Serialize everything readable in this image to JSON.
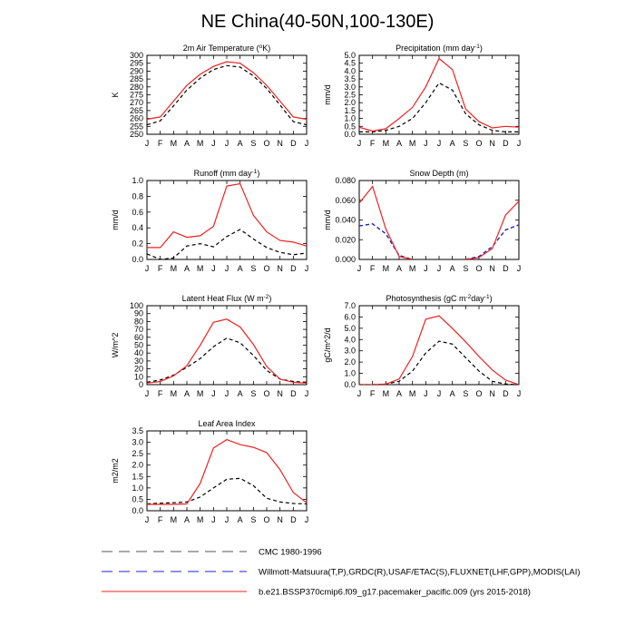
{
  "title": "NE China(40-50N,100-130E)",
  "colors": {
    "cmc": "#000000",
    "obs": "#2222cc",
    "model": "#ee2222"
  },
  "months": [
    "J",
    "F",
    "M",
    "A",
    "M",
    "J",
    "J",
    "A",
    "S",
    "O",
    "N",
    "D",
    "J"
  ],
  "legend": [
    {
      "label": "CMC 1980-1996",
      "color": "#555555",
      "dash": "dashed"
    },
    {
      "label": "Willmott-Matsuura(T,P),GRDC(R),USAF/ETAC(S),FLUXNET(LHF,GPP),MODIS(LAI)",
      "color": "#2222cc",
      "dash": "dashed"
    },
    {
      "label": "b.e21.BSSP370cmip6.f09_g17.pacemaker_pacific.009 (yrs 2015-2018)",
      "color": "#ee2222",
      "dash": "solid"
    }
  ],
  "chart_data": [
    {
      "id": "temp",
      "type": "line",
      "title": "2m Air Temperature (",
      "title_sup": "o",
      "title_tail": "K)",
      "ylabel": "K",
      "ylim": [
        250,
        300
      ],
      "yticks": [
        250,
        255,
        260,
        265,
        270,
        275,
        280,
        285,
        290,
        295,
        300
      ],
      "categories": [
        "J",
        "F",
        "M",
        "A",
        "M",
        "J",
        "J",
        "A",
        "S",
        "O",
        "N",
        "D",
        "J"
      ],
      "series": [
        {
          "name": "model",
          "values": [
            259.5,
            261,
            271,
            281,
            288,
            293,
            296,
            295,
            289,
            281,
            271,
            261,
            259.5
          ]
        },
        {
          "name": "cmc",
          "values": [
            256,
            258.5,
            268,
            278,
            285.5,
            291,
            293.5,
            292.5,
            287,
            279,
            268.5,
            258,
            256
          ]
        }
      ]
    },
    {
      "id": "precip",
      "type": "line",
      "title": "Precipitation (mm day",
      "title_sup": "-1",
      "title_tail": ")",
      "ylabel": "mm/d",
      "ylim": [
        0,
        5
      ],
      "yticks": [
        0.0,
        0.5,
        1.0,
        1.5,
        2.0,
        2.5,
        3.0,
        3.5,
        4.0,
        4.5,
        5.0
      ],
      "categories": [
        "J",
        "F",
        "M",
        "A",
        "M",
        "J",
        "J",
        "A",
        "S",
        "O",
        "N",
        "D",
        "J"
      ],
      "series": [
        {
          "name": "model",
          "values": [
            0.45,
            0.2,
            0.35,
            1.0,
            1.7,
            3.0,
            4.8,
            4.1,
            1.6,
            0.8,
            0.4,
            0.5,
            0.45
          ]
        },
        {
          "name": "cmc",
          "values": [
            0.15,
            0.15,
            0.25,
            0.5,
            1.0,
            2.0,
            3.25,
            2.8,
            1.3,
            0.6,
            0.25,
            0.15,
            0.15
          ]
        }
      ]
    },
    {
      "id": "runoff",
      "type": "line",
      "title": "Runoff (mm day",
      "title_sup": "-1",
      "title_tail": ")",
      "ylabel": "mm/d",
      "ylim": [
        0,
        1
      ],
      "yticks": [
        0.0,
        0.2,
        0.4,
        0.6,
        0.8,
        1.0
      ],
      "categories": [
        "J",
        "F",
        "M",
        "A",
        "M",
        "J",
        "J",
        "A",
        "S",
        "O",
        "N",
        "D",
        "J"
      ],
      "series": [
        {
          "name": "model",
          "values": [
            0.15,
            0.15,
            0.35,
            0.28,
            0.3,
            0.42,
            0.93,
            0.96,
            0.56,
            0.35,
            0.24,
            0.22,
            0.17
          ]
        },
        {
          "name": "cmc",
          "values": [
            0.07,
            0.0,
            0.02,
            0.17,
            0.2,
            0.16,
            0.29,
            0.38,
            0.26,
            0.15,
            0.09,
            0.06,
            0.08
          ]
        }
      ]
    },
    {
      "id": "snow",
      "type": "line",
      "title": "Snow Depth (m)",
      "title_sup": "",
      "title_tail": "",
      "ylabel": "mm/d",
      "ylim": [
        0,
        0.08
      ],
      "yticks": [
        0.0,
        0.02,
        0.04,
        0.06,
        0.08
      ],
      "categories": [
        "J",
        "F",
        "M",
        "A",
        "M",
        "J",
        "J",
        "A",
        "S",
        "O",
        "N",
        "D",
        "J"
      ],
      "series": [
        {
          "name": "model",
          "values": [
            0.057,
            0.074,
            0.031,
            0.003,
            0.0,
            null,
            null,
            null,
            0.0,
            0.002,
            0.011,
            0.045,
            0.059
          ]
        },
        {
          "name": "obs",
          "values": [
            0.034,
            0.036,
            0.026,
            0.004,
            0.0,
            null,
            null,
            null,
            0.0,
            0.003,
            0.013,
            0.03,
            0.035
          ]
        },
        {
          "name": "cmc",
          "values": [
            0.034,
            0.036,
            0.026,
            0.004,
            0.0,
            null,
            null,
            null,
            0.0,
            0.003,
            0.013,
            0.03,
            0.035
          ]
        }
      ]
    },
    {
      "id": "lhf",
      "type": "line",
      "title": "Latent Heat Flux (W m",
      "title_sup": "-2",
      "title_tail": ")",
      "ylabel": "W/m^2",
      "ylim": [
        0,
        100
      ],
      "yticks": [
        0,
        10,
        20,
        30,
        40,
        50,
        60,
        70,
        80,
        90,
        100
      ],
      "categories": [
        "J",
        "F",
        "M",
        "A",
        "M",
        "J",
        "J",
        "A",
        "S",
        "O",
        "N",
        "D",
        "J"
      ],
      "series": [
        {
          "name": "model",
          "values": [
            2,
            4,
            11,
            24,
            50,
            79,
            83,
            73,
            51,
            23,
            7,
            3,
            2
          ]
        },
        {
          "name": "cmc",
          "values": [
            3,
            6,
            12,
            22,
            33,
            48,
            59,
            53,
            37,
            18,
            7,
            4,
            3
          ]
        }
      ]
    },
    {
      "id": "gpp",
      "type": "line",
      "title": "Photosynthesis (gC m",
      "title_sup": "-2",
      "title_tail": "day",
      "title_sup2": "-1",
      "title_tail2": ")",
      "ylabel": "gC/m^2/d",
      "ylim": [
        0,
        7
      ],
      "yticks": [
        0.0,
        1.0,
        2.0,
        3.0,
        4.0,
        5.0,
        6.0,
        7.0
      ],
      "categories": [
        "J",
        "F",
        "M",
        "A",
        "M",
        "J",
        "J",
        "A",
        "S",
        "O",
        "N",
        "D",
        "J"
      ],
      "series": [
        {
          "name": "model",
          "values": [
            0.0,
            0.0,
            0.05,
            0.5,
            2.5,
            5.8,
            6.1,
            5.0,
            3.8,
            2.5,
            1.3,
            0.4,
            0.0
          ]
        },
        {
          "name": "cmc",
          "values": [
            0.0,
            0.0,
            0.05,
            0.3,
            1.2,
            2.8,
            3.85,
            3.6,
            2.4,
            1.2,
            0.3,
            0.05,
            0.0
          ]
        }
      ]
    },
    {
      "id": "lai",
      "type": "line",
      "title": "Leaf Area Index",
      "title_sup": "",
      "title_tail": "",
      "ylabel": "m2/m2",
      "ylim": [
        0,
        3.5
      ],
      "yticks": [
        0.0,
        0.5,
        1.0,
        1.5,
        2.0,
        2.5,
        3.0,
        3.5
      ],
      "categories": [
        "J",
        "F",
        "M",
        "A",
        "M",
        "J",
        "J",
        "A",
        "S",
        "O",
        "N",
        "D",
        "J"
      ],
      "series": [
        {
          "name": "model",
          "values": [
            0.28,
            0.28,
            0.28,
            0.3,
            1.2,
            2.75,
            3.12,
            2.9,
            2.78,
            2.55,
            1.8,
            0.8,
            0.35
          ]
        },
        {
          "name": "cmc",
          "values": [
            0.3,
            0.33,
            0.35,
            0.38,
            0.6,
            1.0,
            1.38,
            1.42,
            1.1,
            0.55,
            0.38,
            0.32,
            0.3
          ]
        }
      ]
    }
  ]
}
